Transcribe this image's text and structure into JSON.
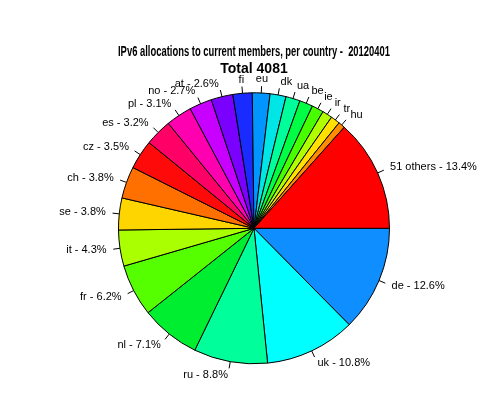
{
  "chart_data": {
    "type": "pie",
    "title": "IPv6 allocations to current members, per country -  20120401",
    "subtitle": "Total 4081",
    "categories": [
      "de - 12.6%",
      "uk - 10.8%",
      "ru - 8.8%",
      "nl - 7.1%",
      "fr - 6.2%",
      "it - 4.3%",
      "se - 3.8%",
      "ch - 3.8%",
      "cz - 3.5%",
      "es - 3.2%",
      "pl - 3.1%",
      "no - 2.7%",
      "at - 2.6%",
      "fi",
      "eu",
      "dk",
      "ua",
      "be",
      "ie",
      "ir",
      "tr",
      "hu",
      "51 others - 13.4%"
    ],
    "values": [
      12.6,
      10.8,
      8.8,
      7.1,
      6.2,
      4.3,
      3.8,
      3.8,
      3.5,
      3.2,
      3.1,
      2.7,
      2.6,
      2.3,
      2.1,
      1.9,
      1.7,
      1.6,
      1.4,
      1.2,
      1.1,
      0.8,
      13.4
    ],
    "colors": [
      "#0f8fff",
      "#00ffff",
      "#00ff9a",
      "#00ee30",
      "#55ff00",
      "#aaff00",
      "#ffd500",
      "#ff7000",
      "#ff0a0a",
      "#ff0066",
      "#ff00b0",
      "#c800ff",
      "#7a00ff",
      "#1a2bff",
      "#0095ff",
      "#00e6e6",
      "#00ff9a",
      "#00ff44",
      "#48ff00",
      "#b0ff00",
      "#ffe000",
      "#ff8c00",
      "#ff0000"
    ]
  }
}
